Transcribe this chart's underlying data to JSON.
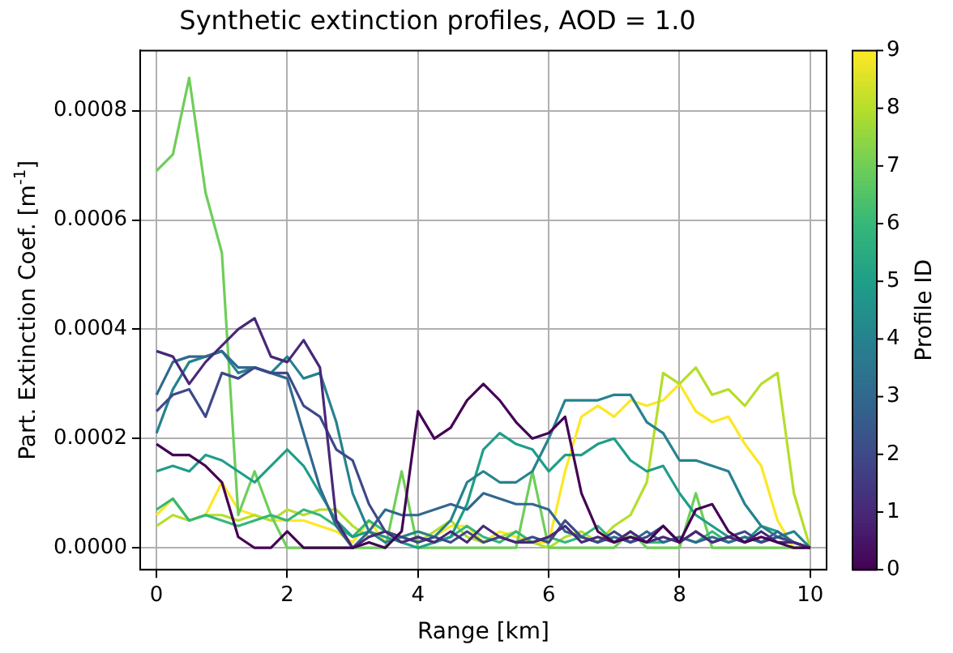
{
  "chart_data": {
    "type": "line",
    "title": "Synthetic extinction profiles, AOD = 1.0",
    "xlabel": "Range [km]",
    "ylabel": "Part. Extinction Coef. [m$^{-1}$]",
    "clabel": "Profile ID",
    "clim": [
      0,
      9
    ],
    "cticks": [
      0,
      1,
      2,
      3,
      4,
      5,
      6,
      7,
      8,
      9
    ],
    "x": [
      0,
      0.25,
      0.5,
      0.75,
      1,
      1.25,
      1.5,
      1.75,
      2,
      2.25,
      2.5,
      2.75,
      3,
      3.25,
      3.5,
      3.75,
      4,
      4.25,
      4.5,
      4.75,
      5,
      5.25,
      5.5,
      5.75,
      6,
      6.25,
      6.5,
      6.75,
      7,
      7.25,
      7.5,
      7.75,
      8,
      8.25,
      8.5,
      8.75,
      9,
      9.25,
      9.5,
      9.75,
      10
    ],
    "xlim": [
      -0.25,
      10.25
    ],
    "xticks": [
      0,
      2,
      4,
      6,
      8,
      10
    ],
    "ylim": [
      -4e-05,
      0.00091
    ],
    "yticks": [
      {
        "value": 0,
        "label": "0.0000"
      },
      {
        "value": 0.0002,
        "label": "0.0002"
      },
      {
        "value": 0.0004,
        "label": "0.0004"
      },
      {
        "value": 0.0006,
        "label": "0.0006"
      },
      {
        "value": 0.0008,
        "label": "0.0008"
      }
    ],
    "grid": true,
    "series": [
      {
        "color": "#440154",
        "values": [
          0.00019,
          0.00017,
          0.00017,
          0.00015,
          0.00012,
          2e-05,
          0,
          0,
          3e-05,
          0,
          0,
          0,
          0,
          1e-05,
          0,
          3e-05,
          0.00025,
          0.0002,
          0.00022,
          0.00027,
          0.0003,
          0.00027,
          0.00023,
          0.0002,
          0.00021,
          0.00024,
          0.0001,
          3e-05,
          1e-05,
          2e-05,
          1e-05,
          4e-05,
          1e-05,
          7e-05,
          8e-05,
          3e-05,
          1e-05,
          2e-05,
          1e-05,
          0,
          0
        ]
      },
      {
        "color": "#482878",
        "values": [
          0.00036,
          0.00035,
          0.0003,
          0.00034,
          0.00037,
          0.0004,
          0.00042,
          0.00035,
          0.00034,
          0.00038,
          0.00033,
          5e-05,
          0,
          2e-05,
          3e-05,
          1e-05,
          2e-05,
          1e-05,
          3e-05,
          1e-05,
          4e-05,
          2e-05,
          1e-05,
          1e-05,
          2e-05,
          4e-05,
          1e-05,
          2e-05,
          1e-05,
          3e-05,
          1e-05,
          2e-05,
          1e-05,
          3e-05,
          1e-05,
          2e-05,
          1e-05,
          3e-05,
          1e-05,
          1e-05,
          0
        ]
      },
      {
        "color": "#3e4989",
        "values": [
          0.00025,
          0.00028,
          0.00029,
          0.00024,
          0.00032,
          0.00031,
          0.00033,
          0.00032,
          0.00032,
          0.00026,
          0.00024,
          0.00018,
          0.00016,
          8e-05,
          3e-05,
          2e-05,
          1e-05,
          2e-05,
          1e-05,
          3e-05,
          1e-05,
          2e-05,
          1e-05,
          2e-05,
          1e-05,
          5e-05,
          2e-05,
          1e-05,
          3e-05,
          1e-05,
          2e-05,
          4e-05,
          1e-05,
          3e-05,
          1e-05,
          2e-05,
          3e-05,
          1e-05,
          2e-05,
          1e-05,
          0
        ]
      },
      {
        "color": "#31688e",
        "values": [
          0.00028,
          0.00034,
          0.00035,
          0.00035,
          0.00036,
          0.00033,
          0.00033,
          0.00032,
          0.00031,
          0.00021,
          0.00011,
          4e-05,
          0,
          3e-05,
          7e-05,
          6e-05,
          6e-05,
          7e-05,
          8e-05,
          7e-05,
          0.0001,
          9e-05,
          8e-05,
          8e-05,
          7e-05,
          3e-05,
          2e-05,
          1e-05,
          2e-05,
          1e-05,
          3e-05,
          1e-05,
          2e-05,
          1e-05,
          2e-05,
          1e-05,
          2e-05,
          1e-05,
          3e-05,
          1e-05,
          0
        ]
      },
      {
        "color": "#26828e",
        "values": [
          0.00021,
          0.00029,
          0.00034,
          0.00035,
          0.00036,
          0.00032,
          0.00033,
          0.00032,
          0.00035,
          0.00031,
          0.00032,
          0.00023,
          0.0001,
          3e-05,
          1e-05,
          2e-05,
          3e-05,
          2e-05,
          5e-05,
          0.00012,
          0.00014,
          0.00012,
          0.00012,
          0.00014,
          0.0002,
          0.00027,
          0.00027,
          0.00027,
          0.00028,
          0.00028,
          0.00023,
          0.00021,
          0.00016,
          0.00016,
          0.00015,
          0.00014,
          8e-05,
          4e-05,
          2e-05,
          3e-05,
          0
        ]
      },
      {
        "color": "#1f9e89",
        "values": [
          0.00014,
          0.00015,
          0.00014,
          0.00017,
          0.00016,
          0.00014,
          0.00012,
          0.00015,
          0.00018,
          0.00015,
          0.0001,
          5e-05,
          2e-05,
          3e-05,
          2e-05,
          1e-05,
          0,
          1e-05,
          2e-05,
          8e-05,
          0.00018,
          0.00021,
          0.00019,
          0.00018,
          0.00014,
          0.00017,
          0.00017,
          0.00019,
          0.0002,
          0.00016,
          0.00014,
          0.00015,
          0.0001,
          6e-05,
          4e-05,
          2e-05,
          1e-05,
          4e-05,
          3e-05,
          1e-05,
          0
        ]
      },
      {
        "color": "#35b779",
        "values": [
          7e-05,
          9e-05,
          5e-05,
          6e-05,
          5e-05,
          4e-05,
          5e-05,
          6e-05,
          5e-05,
          7e-05,
          6e-05,
          4e-05,
          2e-05,
          5e-05,
          3e-05,
          1e-05,
          2e-05,
          1e-05,
          2e-05,
          4e-05,
          2e-05,
          1e-05,
          3e-05,
          1e-05,
          2e-05,
          1e-05,
          2e-05,
          4e-05,
          1e-05,
          2e-05,
          1e-05,
          1e-05,
          2e-05,
          1e-05,
          3e-05,
          1e-05,
          2e-05,
          1e-05,
          2e-05,
          1e-05,
          0
        ]
      },
      {
        "color": "#6ece58",
        "values": [
          0.00069,
          0.00072,
          0.00086,
          0.00065,
          0.00054,
          6e-05,
          0.00014,
          6e-05,
          0,
          0,
          0,
          0,
          0,
          0,
          0,
          0.00014,
          0,
          0,
          0,
          0,
          0,
          0,
          0,
          0.00014,
          0,
          0,
          0,
          0,
          0,
          3e-05,
          0,
          0,
          0,
          0.0001,
          0,
          0,
          0,
          0,
          0,
          0,
          0
        ]
      },
      {
        "color": "#b5de2b",
        "values": [
          4e-05,
          6e-05,
          5e-05,
          6e-05,
          6e-05,
          5e-05,
          6e-05,
          5e-05,
          7e-05,
          6e-05,
          7e-05,
          7e-05,
          4e-05,
          2e-05,
          3e-05,
          2e-05,
          1e-05,
          3e-05,
          5e-05,
          2e-05,
          1e-05,
          2e-05,
          3e-05,
          1e-05,
          0,
          2e-05,
          3e-05,
          1e-05,
          4e-05,
          6e-05,
          0.00012,
          0.00032,
          0.0003,
          0.00033,
          0.00028,
          0.00029,
          0.00026,
          0.0003,
          0.00032,
          0.0001,
          0
        ]
      },
      {
        "color": "#fde725",
        "values": [
          6e-05,
          9e-05,
          5e-05,
          6e-05,
          0.00012,
          7e-05,
          6e-05,
          5e-05,
          5e-05,
          5e-05,
          4e-05,
          3e-05,
          1e-05,
          5e-05,
          1e-05,
          2e-05,
          3e-05,
          2e-05,
          4e-05,
          4e-05,
          1e-05,
          3e-05,
          2e-05,
          1e-05,
          1e-05,
          0.00014,
          0.00024,
          0.00026,
          0.00024,
          0.00027,
          0.00026,
          0.00027,
          0.0003,
          0.00025,
          0.00023,
          0.00024,
          0.00019,
          0.00015,
          5e-05,
          0,
          0
        ]
      }
    ]
  }
}
